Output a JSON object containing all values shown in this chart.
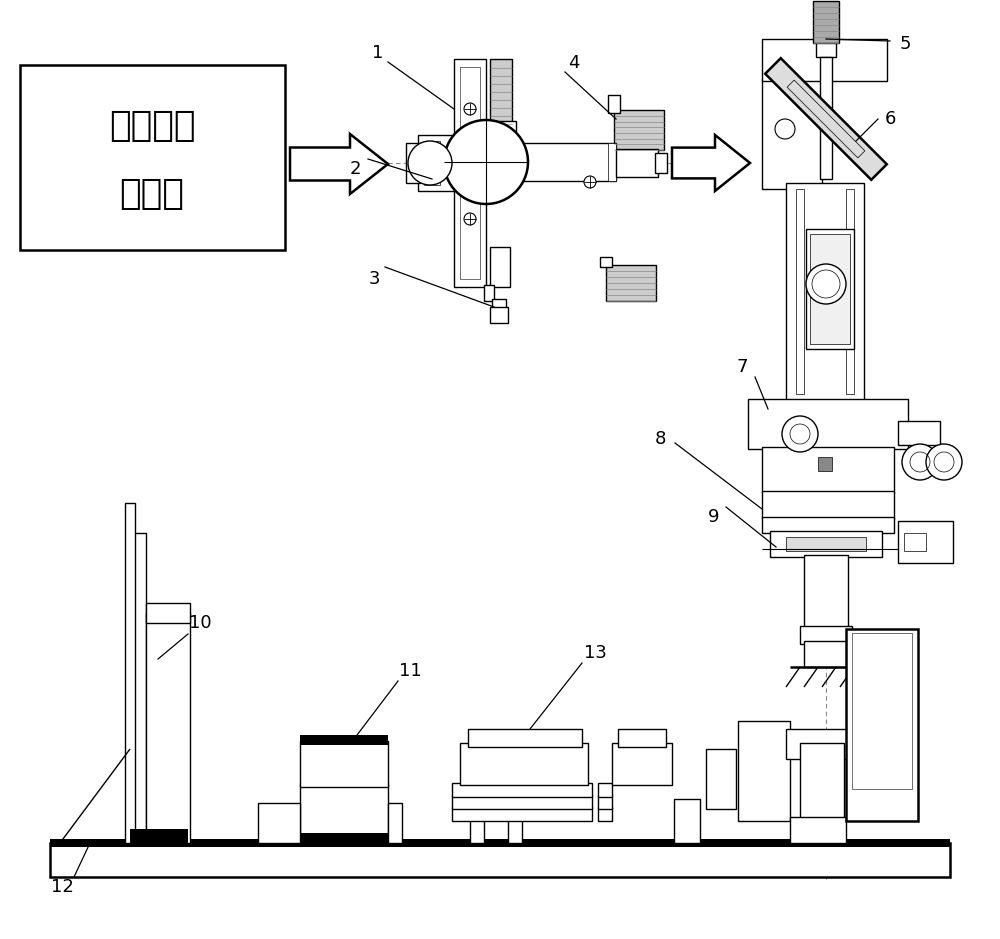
{
  "bg_color": "#ffffff",
  "line_color": "#000000",
  "lw": 1.0,
  "lw2": 1.8,
  "label_fs": 13,
  "chinese_fs": 26
}
